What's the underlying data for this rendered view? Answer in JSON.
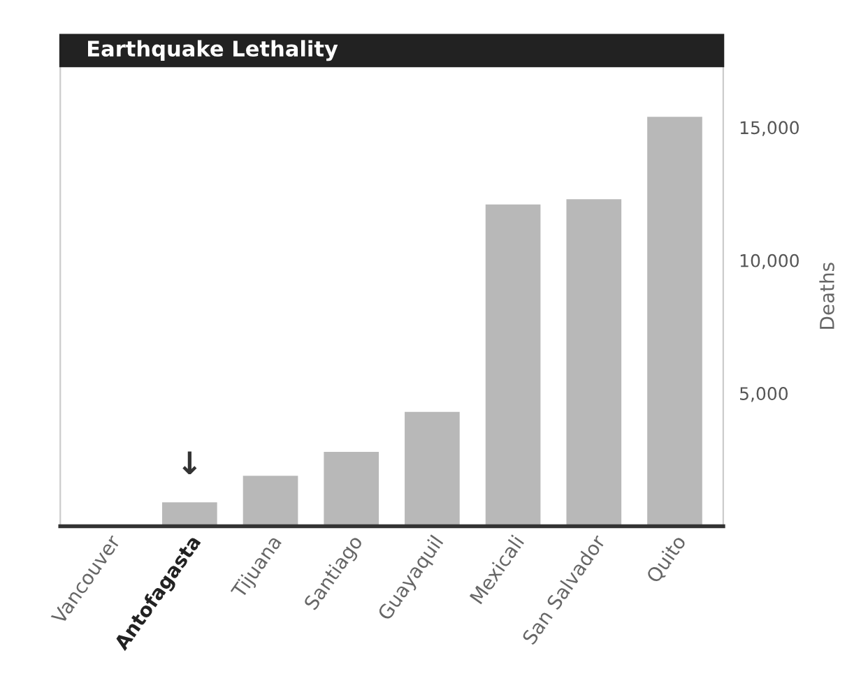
{
  "chart_data": {
    "type": "bar",
    "title": "Earthquake Lethality",
    "ylabel": "Deaths",
    "categories": [
      "Vancouver",
      "Antofagasta",
      "Tijuana",
      "Santiago",
      "Guayaquil",
      "Mexicali",
      "San Salvador",
      "Quito"
    ],
    "values": [
      0,
      900,
      1900,
      2800,
      4300,
      12100,
      12300,
      15400
    ],
    "color": "#b8b8b8",
    "ylim": [
      0,
      17300
    ],
    "yticks": [
      {
        "value": 5000,
        "label": "5,000"
      },
      {
        "value": 10000,
        "label": "10,000"
      },
      {
        "value": 15000,
        "label": "15,000"
      }
    ],
    "annotations": [
      {
        "text": "↓",
        "x": "Antofagasta",
        "y": 900
      }
    ],
    "grid": false
  }
}
